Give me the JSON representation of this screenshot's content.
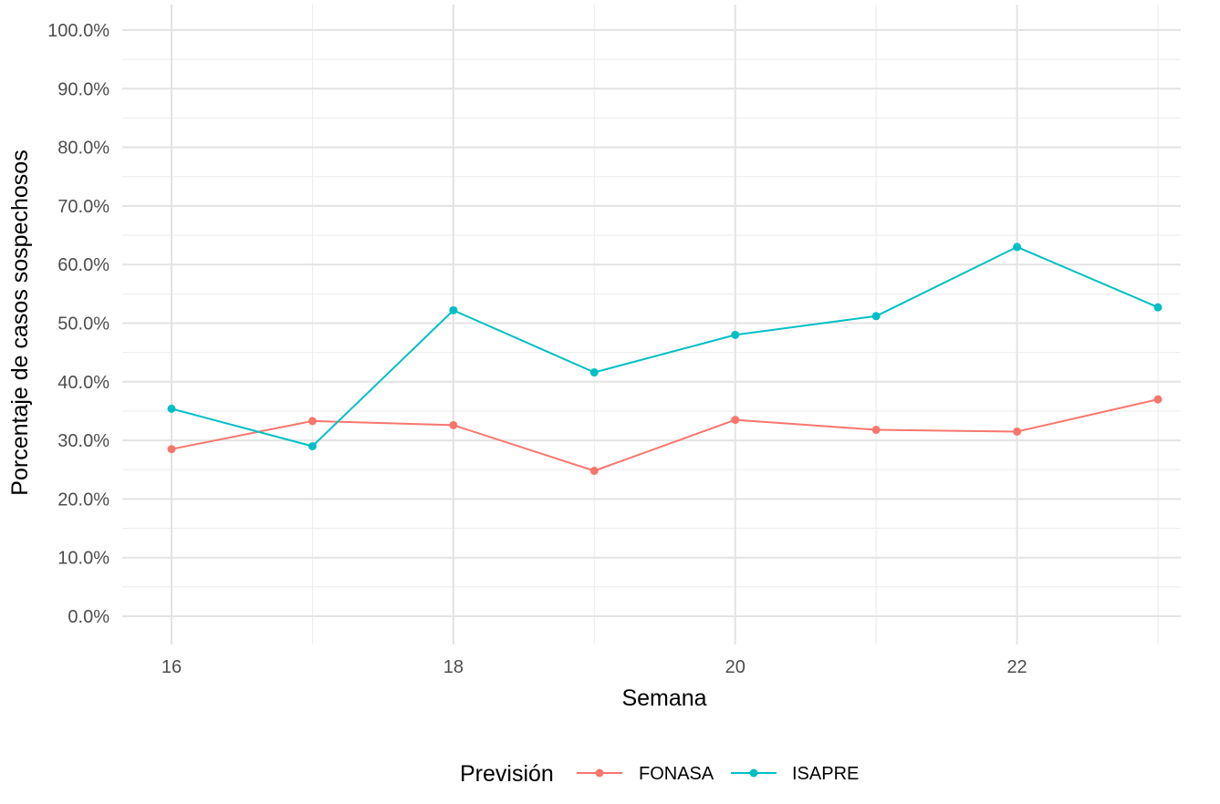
{
  "chart_data": {
    "type": "line",
    "xlabel": "Semana",
    "ylabel": "Porcentaje de casos sospechosos",
    "x": [
      16,
      17,
      18,
      19,
      20,
      21,
      22,
      23
    ],
    "x_ticks": [
      16,
      18,
      20,
      22
    ],
    "x_tick_labels": [
      "16",
      "18",
      "20",
      "22"
    ],
    "ylim": [
      0,
      100
    ],
    "y_ticks": [
      0,
      10,
      20,
      30,
      40,
      50,
      60,
      70,
      80,
      90,
      100
    ],
    "y_tick_labels": [
      "0.0%",
      "10.0%",
      "20.0%",
      "30.0%",
      "40.0%",
      "50.0%",
      "60.0%",
      "70.0%",
      "80.0%",
      "90.0%",
      "100.0%"
    ],
    "grid": true,
    "legend": {
      "title": "Previsión",
      "position": "bottom"
    },
    "series": [
      {
        "name": "FONASA",
        "color": "#F8766D",
        "values": [
          28.5,
          33.3,
          32.6,
          24.8,
          33.5,
          31.8,
          31.5,
          37.0
        ]
      },
      {
        "name": "ISAPRE",
        "color": "#00BFC4",
        "values": [
          35.4,
          29.0,
          52.2,
          41.6,
          48.0,
          51.2,
          63.0,
          52.7
        ]
      }
    ]
  }
}
